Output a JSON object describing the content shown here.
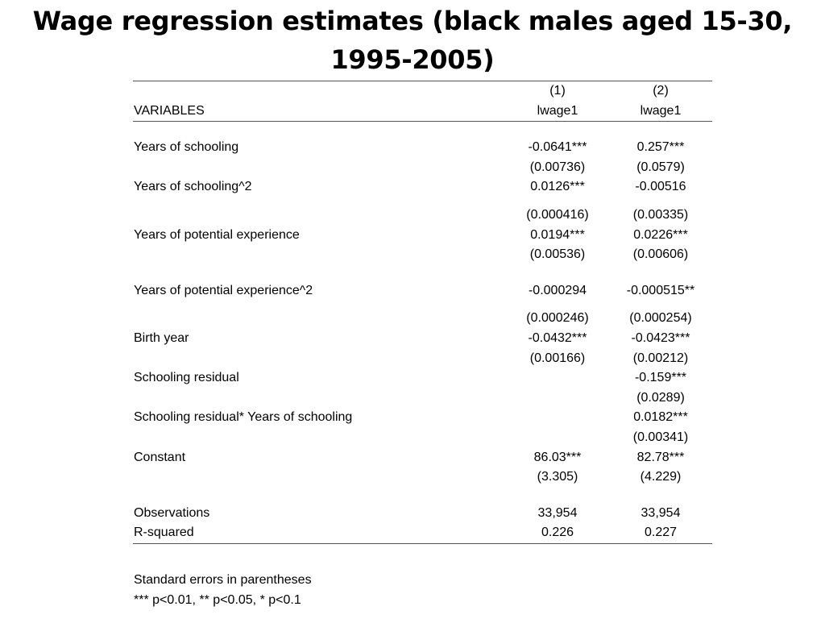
{
  "title": {
    "line1": "Wage regression estimates (black males aged 15-30,",
    "line2": "1995-2005)"
  },
  "table": {
    "header": {
      "col_numbers": [
        "(1)",
        "(2)"
      ],
      "variables_label": "VARIABLES",
      "dep_vars": [
        "lwage1",
        "lwage1"
      ]
    },
    "rows": [
      {
        "label": "Years of schooling",
        "c1": "-0.0641***",
        "c2": "0.257***",
        "se1": "(0.00736)",
        "se2": "(0.0579)"
      },
      {
        "label": "Years of schooling^2",
        "c1": "0.0126***",
        "c2": "-0.00516",
        "se1": "(0.000416)",
        "se2": "(0.00335)"
      },
      {
        "label": "Years of potential experience",
        "c1": "0.0194***",
        "c2": "0.0226***",
        "se1": "(0.00536)",
        "se2": "(0.00606)"
      },
      {
        "label": "Years of potential experience^2",
        "c1": "-0.000294",
        "c2": "-0.000515**",
        "se1": "(0.000246)",
        "se2": "(0.000254)"
      },
      {
        "label": "Birth year",
        "c1": "-0.0432***",
        "c2": "-0.0423***",
        "se1": "(0.00166)",
        "se2": "(0.00212)"
      },
      {
        "label": "Schooling residual",
        "c1": "",
        "c2": "-0.159***",
        "se1": "",
        "se2": "(0.0289)"
      },
      {
        "label": "Schooling residual* Years of schooling",
        "c1": "",
        "c2": "0.0182***",
        "se1": "",
        "se2": "(0.00341)"
      },
      {
        "label": "Constant",
        "c1": "86.03***",
        "c2": "82.78***",
        "se1": "(3.305)",
        "se2": "(4.229)"
      }
    ],
    "stats": [
      {
        "label": "Observations",
        "c1": "33,954",
        "c2": "33,954"
      },
      {
        "label": "R-squared",
        "c1": "0.226",
        "c2": "0.227"
      }
    ]
  },
  "notes": [
    "Standard errors in parentheses",
    "*** p<0.01, ** p<0.05, * p<0.1"
  ]
}
